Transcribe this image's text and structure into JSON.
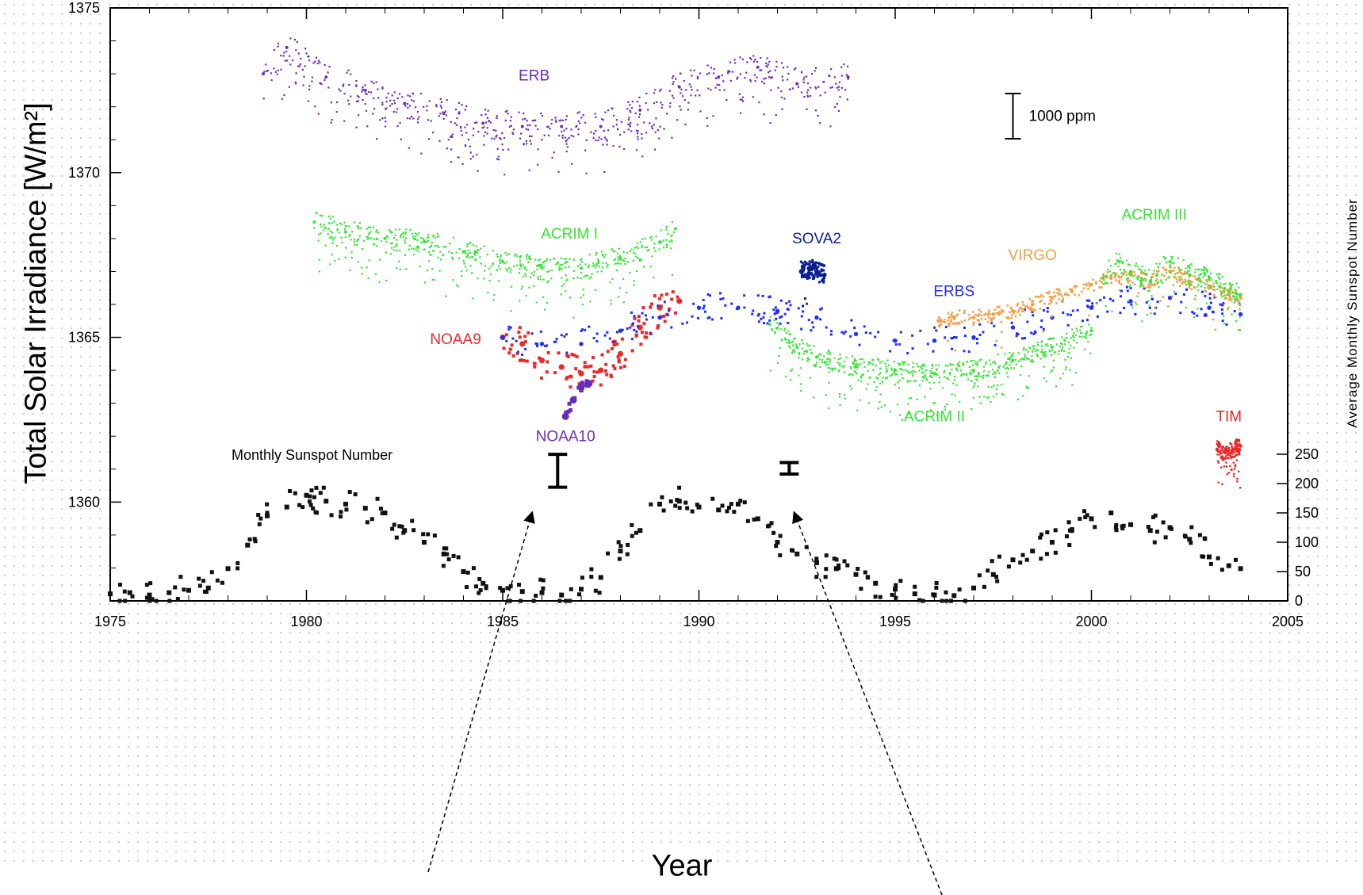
{
  "chart_data": {
    "type": "scatter",
    "title": "",
    "xlabel": "Year",
    "ylabel": "Total Solar Irradiance [W/m²]",
    "ylabel_right": "Average Monthly Sunspot Number",
    "xlim": [
      1975,
      2005
    ],
    "ylim": [
      1357,
      1375
    ],
    "x_ticks": [
      "1975",
      "1980",
      "1985",
      "1990",
      "1995",
      "2000",
      "2005"
    ],
    "y_ticks": [
      "1360",
      "1365",
      "1370",
      "1375"
    ],
    "y2_ticks": [
      "0",
      "50",
      "100",
      "150",
      "200",
      "250"
    ],
    "y2_range": [
      0,
      250
    ],
    "grid": false,
    "series": [
      {
        "name": "ERB",
        "color": "#6a2db8",
        "x": [
          1978.9,
          1979.5,
          1980.5,
          1981.5,
          1982.5,
          1983.5,
          1984.5,
          1985.5,
          1986.5,
          1987.5,
          1988.5,
          1989.5,
          1990.5,
          1991.5,
          1992.5,
          1993.8
        ],
        "y": [
          1373.0,
          1373.8,
          1372.9,
          1372.5,
          1372.1,
          1371.8,
          1371.5,
          1371.4,
          1371.4,
          1371.4,
          1371.9,
          1372.6,
          1372.9,
          1373.2,
          1372.7,
          1372.9
        ]
      },
      {
        "name": "ACRIM I",
        "color": "#33e533",
        "x": [
          1980.2,
          1981.0,
          1982.0,
          1983.0,
          1984.0,
          1984.3,
          1985.0,
          1986.0,
          1987.0,
          1988.0,
          1989.0,
          1989.4
        ],
        "y": [
          1368.5,
          1368.2,
          1368.0,
          1367.9,
          1367.6,
          1367.6,
          1367.3,
          1367.1,
          1367.1,
          1367.4,
          1367.9,
          1368.3
        ]
      },
      {
        "name": "NOAA9",
        "color": "#e82a2a",
        "x": [
          1985.0,
          1985.5,
          1986.0,
          1986.5,
          1987.0,
          1987.5,
          1988.0,
          1988.5,
          1989.0,
          1989.5
        ],
        "y": [
          1365.0,
          1364.8,
          1364.3,
          1364.1,
          1363.9,
          1364.0,
          1364.5,
          1365.3,
          1365.9,
          1366.1
        ]
      },
      {
        "name": "NOAA10",
        "color": "#6a2db8",
        "x": [
          1986.6,
          1986.8,
          1987.0,
          1987.2
        ],
        "y": [
          1362.6,
          1363.1,
          1363.5,
          1363.6
        ]
      },
      {
        "name": "ERBS",
        "color": "#1f2dff",
        "x": [
          1985.0,
          1986.0,
          1987.0,
          1988.0,
          1989.0,
          1990.0,
          1991.0,
          1992.0,
          1993.0,
          1994.0,
          1995.0,
          1996.0,
          1997.0,
          1998.0,
          1999.0,
          2000.0,
          2001.0,
          2002.0,
          2003.0,
          2003.8
        ],
        "y": [
          1365.0,
          1364.8,
          1364.8,
          1365.2,
          1365.6,
          1365.9,
          1365.9,
          1365.8,
          1365.6,
          1365.1,
          1364.9,
          1364.9,
          1365.0,
          1365.3,
          1365.6,
          1365.9,
          1366.1,
          1366.2,
          1365.9,
          1365.7
        ]
      },
      {
        "name": "SOVA2",
        "color": "#0a1f8f",
        "x": [
          1992.6,
          1992.8,
          1993.0,
          1993.2
        ],
        "y": [
          1367.0,
          1367.1,
          1367.0,
          1366.9
        ]
      },
      {
        "name": "ACRIM II",
        "color": "#33e533",
        "x": [
          1991.8,
          1992.5,
          1993.0,
          1994.0,
          1995.0,
          1996.0,
          1997.0,
          1998.0,
          1999.0,
          2000.0
        ],
        "y": [
          1365.4,
          1364.7,
          1364.4,
          1364.1,
          1364.0,
          1363.9,
          1364.0,
          1364.3,
          1364.7,
          1365.2
        ]
      },
      {
        "name": "VIRGO",
        "color": "#f0a04a",
        "x": [
          1996.1,
          1996.5,
          1997.0,
          1997.5,
          1998.0,
          1998.5,
          1999.0,
          1999.5,
          2000.0,
          2000.5,
          2001.0,
          2001.5,
          2002.0,
          2002.5,
          2003.0,
          2003.5,
          2003.8
        ],
        "y": [
          1365.5,
          1365.6,
          1365.6,
          1365.7,
          1365.8,
          1366.0,
          1366.2,
          1366.4,
          1366.6,
          1366.8,
          1366.9,
          1366.7,
          1367.0,
          1366.7,
          1366.5,
          1366.3,
          1366.2
        ]
      },
      {
        "name": "ACRIM III",
        "color": "#33e533",
        "x": [
          2000.3,
          2000.7,
          2001.0,
          2001.5,
          2002.0,
          2002.5,
          2003.0,
          2003.5,
          2003.8
        ],
        "y": [
          1366.8,
          1367.3,
          1367.0,
          1366.7,
          1367.3,
          1366.9,
          1366.8,
          1366.4,
          1366.3
        ]
      },
      {
        "name": "TIM",
        "color": "#e82a2a",
        "x": [
          2003.2,
          2003.4,
          2003.6,
          2003.8
        ],
        "y": [
          1361.6,
          1361.5,
          1361.6,
          1361.7
        ]
      }
    ],
    "sunspots": {
      "name": "Monthly Sunspot Number",
      "color": "#111111",
      "x": [
        1975.0,
        1975.5,
        1976.0,
        1976.5,
        1977.0,
        1977.5,
        1978.0,
        1978.5,
        1979.0,
        1979.5,
        1980.0,
        1980.5,
        1981.0,
        1981.5,
        1982.0,
        1982.5,
        1983.0,
        1983.5,
        1984.0,
        1984.5,
        1985.0,
        1985.5,
        1986.0,
        1986.5,
        1987.0,
        1987.5,
        1988.0,
        1988.5,
        1989.0,
        1989.5,
        1990.0,
        1990.5,
        1991.0,
        1991.5,
        1992.0,
        1992.5,
        1993.0,
        1993.5,
        1994.0,
        1994.5,
        1995.0,
        1995.5,
        1996.0,
        1996.5,
        1997.0,
        1997.5,
        1998.0,
        1998.5,
        1999.0,
        1999.5,
        2000.0,
        2000.5,
        2001.0,
        2001.5,
        2002.0,
        2002.5,
        2003.0,
        2003.5,
        2003.8
      ],
      "y": [
        12,
        14,
        10,
        14,
        18,
        22,
        55,
        95,
        145,
        160,
        180,
        170,
        165,
        158,
        150,
        120,
        100,
        80,
        50,
        30,
        18,
        16,
        14,
        10,
        20,
        40,
        85,
        120,
        165,
        170,
        160,
        155,
        165,
        140,
        100,
        80,
        65,
        55,
        45,
        30,
        20,
        12,
        10,
        9,
        22,
        45,
        70,
        85,
        100,
        120,
        140,
        150,
        130,
        120,
        125,
        105,
        75,
        60,
        55
      ]
    },
    "annotations": [
      "1000 ppm"
    ]
  }
}
